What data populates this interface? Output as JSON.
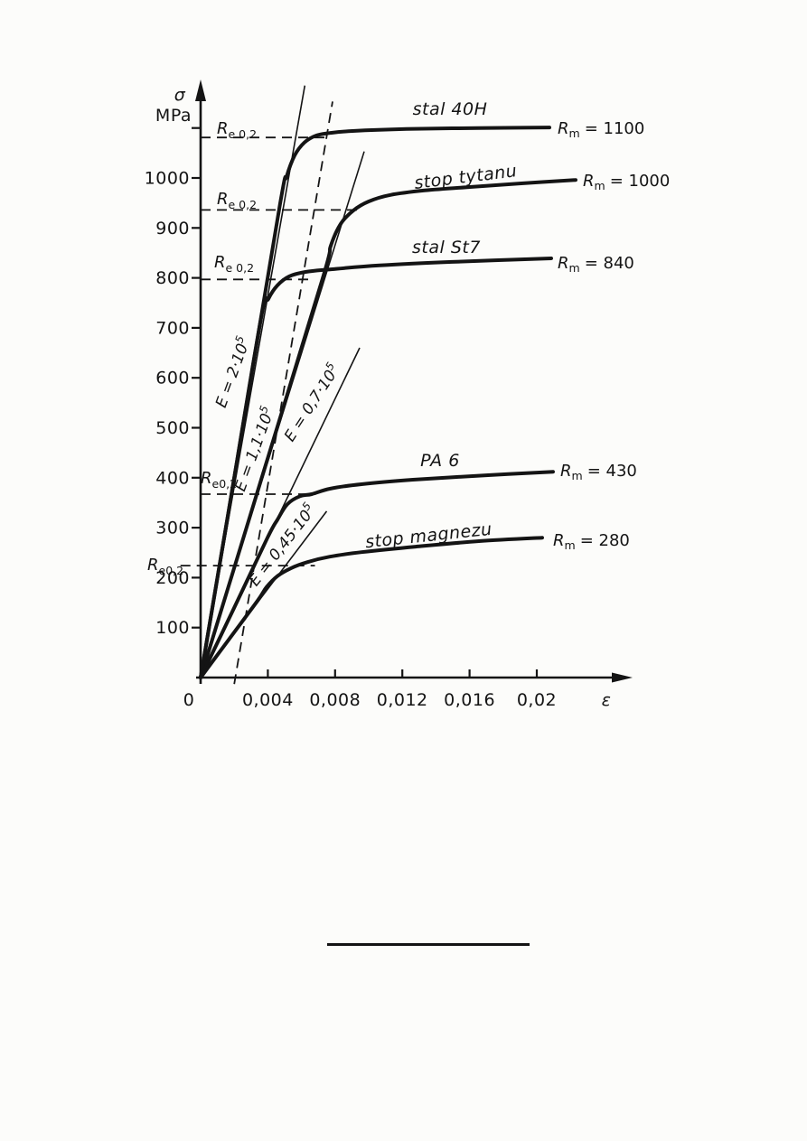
{
  "page": {
    "background_color": "#fcfcfa",
    "ink_color": "#141414"
  },
  "chart_data": {
    "type": "line",
    "xlabel": "ε",
    "ylabel": "σ MPa",
    "grid": false,
    "legend": "labels drawn along curves",
    "x_axis": {
      "label": "ε",
      "zero_label": "0",
      "tick_values": [
        0.004,
        0.008,
        0.012,
        0.016,
        0.02
      ],
      "tick_labels": [
        "0,004",
        "0,008",
        "0,012",
        "0,016",
        "0,02"
      ],
      "range": [
        0,
        0.0235
      ]
    },
    "y_axis": {
      "label_sigma": "σ",
      "label_unit": "MPa",
      "tick_values": [
        100,
        200,
        300,
        400,
        500,
        600,
        700,
        800,
        900,
        1000,
        1100
      ],
      "tick_labels": [
        "100",
        "200",
        "300",
        "400",
        "500",
        "600",
        "700",
        "800",
        "900",
        "1000"
      ],
      "range": [
        0,
        1210
      ]
    },
    "labels": {
      "r": "R",
      "m_sub": "m"
    },
    "re02_label_subs": [
      "e 0,2",
      "e 0,2",
      "e 0,2",
      "e0,2",
      "e0,2"
    ],
    "series": [
      {
        "name": "stal 40H",
        "E_MPa": 200000,
        "Rm_MPa": 1100,
        "rm_text": "= 1100",
        "re02_sigma": 1080,
        "points": [
          [
            0,
            0
          ],
          [
            0.0024,
            480
          ],
          [
            0.00473,
            949
          ],
          [
            0.00511,
            1002
          ],
          [
            0.00559,
            1045
          ],
          [
            0.00618,
            1071
          ],
          [
            0.00688,
            1085
          ],
          [
            0.00769,
            1090
          ],
          [
            0.00903,
            1094
          ],
          [
            0.01226,
            1098
          ],
          [
            0.01656,
            1100
          ],
          [
            0.02075,
            1101
          ]
        ]
      },
      {
        "name": "stop tytanu",
        "E_MPa": 110000,
        "Rm_MPa": 1000,
        "rm_text": "= 1000",
        "re02_sigma": 935,
        "points": [
          [
            0,
            0
          ],
          [
            0.0036,
            396
          ],
          [
            0.00726,
            799
          ],
          [
            0.00774,
            864
          ],
          [
            0.00833,
            908
          ],
          [
            0.00909,
            935
          ],
          [
            0.01,
            953
          ],
          [
            0.01129,
            966
          ],
          [
            0.01333,
            975
          ],
          [
            0.01602,
            982
          ],
          [
            0.01898,
            989
          ],
          [
            0.02231,
            996
          ]
        ]
      },
      {
        "name": "stal St7",
        "E_MPa": 200000,
        "Rm_MPa": 840,
        "rm_text": "= 840",
        "re02_sigma": 800,
        "points": [
          [
            0,
            0
          ],
          [
            0.0018,
            360
          ],
          [
            0.0036,
            720
          ],
          [
            0.00403,
            758
          ],
          [
            0.00457,
            785
          ],
          [
            0.00527,
            803
          ],
          [
            0.00624,
            812
          ],
          [
            0.00769,
            817
          ],
          [
            0.01065,
            825
          ],
          [
            0.01495,
            832
          ],
          [
            0.02086,
            839
          ]
        ]
      },
      {
        "name": "PA 6",
        "E_MPa": 70000,
        "Rm_MPa": 430,
        "rm_text": "= 430",
        "re02_sigma": 370,
        "points": [
          [
            0,
            0
          ],
          [
            0.002,
            140
          ],
          [
            0.00398,
            280
          ],
          [
            0.00457,
            316
          ],
          [
            0.00516,
            347
          ],
          [
            0.00591,
            363
          ],
          [
            0.00661,
            367
          ],
          [
            0.00769,
            378
          ],
          [
            0.00957,
            387
          ],
          [
            0.01263,
            396
          ],
          [
            0.0171,
            405
          ],
          [
            0.02097,
            412
          ]
        ]
      },
      {
        "name": "stop magnezu",
        "E_MPa": 45000,
        "Rm_MPa": 280,
        "rm_text": "= 280",
        "re02_sigma": 225,
        "points": [
          [
            0,
            0
          ],
          [
            0.0017,
            77
          ],
          [
            0.00339,
            154
          ],
          [
            0.00392,
            181
          ],
          [
            0.00457,
            203
          ],
          [
            0.00538,
            219
          ],
          [
            0.00634,
            231
          ],
          [
            0.00769,
            242
          ],
          [
            0.00957,
            251
          ],
          [
            0.0128,
            262
          ],
          [
            0.01656,
            273
          ],
          [
            0.02032,
            280
          ]
        ]
      }
    ],
    "modulus_lines": [
      {
        "label_base": "E = 2·10",
        "label_exp": "5",
        "E_MPa": 200000,
        "line": [
          [
            0,
            0
          ],
          [
            0.0062,
            1185
          ]
        ]
      },
      {
        "label_base": "E = 1,1·10",
        "label_exp": "5",
        "E_MPa": 110000,
        "line": [
          [
            0,
            0
          ],
          [
            0.00973,
            1053
          ]
        ]
      },
      {
        "label_base": "E = 0,7·10",
        "label_exp": "5",
        "E_MPa": 70000,
        "line": [
          [
            0,
            0
          ],
          [
            0.00946,
            660
          ]
        ]
      },
      {
        "label_base": "E = 0,45·10",
        "label_exp": "5",
        "E_MPa": 45000,
        "line": [
          [
            0,
            0
          ],
          [
            0.0075,
            333
          ]
        ]
      }
    ],
    "offset_guide": {
      "strain_offset": 0.002,
      "line": [
        [
          0.002,
          -13
        ],
        [
          0.00785,
          1153
        ]
      ]
    },
    "re02_guides": [
      {
        "sigma": 1081,
        "strain_start": 0,
        "strain_end": 0.00753
      },
      {
        "sigma": 936,
        "strain_start": 0,
        "strain_end": 0.0093
      },
      {
        "sigma": 797,
        "strain_start": 0,
        "strain_end": 0.0066
      },
      {
        "sigma": 367,
        "strain_start": 0,
        "strain_end": 0.00685
      },
      {
        "sigma": 224,
        "strain_start": -0.0012,
        "strain_end": 0.0068
      }
    ]
  }
}
